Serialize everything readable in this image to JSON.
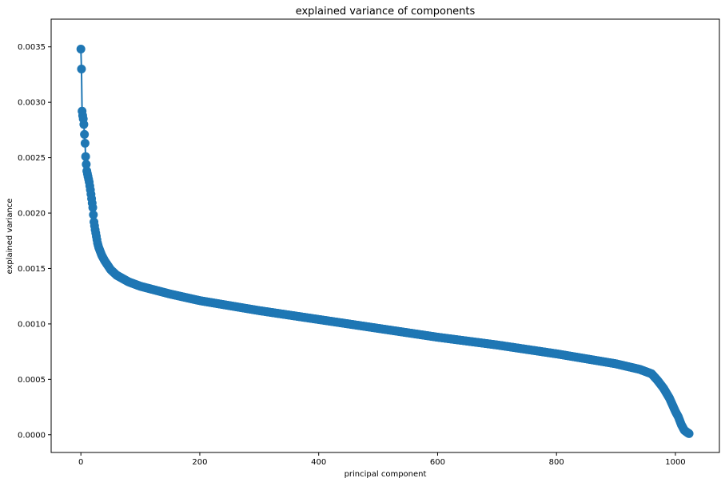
{
  "chart_data": {
    "type": "line",
    "title": "explained variance of components",
    "xlabel": "principal component",
    "ylabel": "explained variance",
    "xlim": [
      -50,
      1074
    ],
    "ylim": [
      -0.00016,
      0.00375
    ],
    "xticks": [
      0,
      200,
      400,
      600,
      800,
      1000
    ],
    "xtick_labels": [
      "0",
      "200",
      "400",
      "600",
      "800",
      "1000"
    ],
    "yticks": [
      0.0,
      0.0005,
      0.001,
      0.0015,
      0.002,
      0.0025,
      0.003,
      0.0035
    ],
    "ytick_labels": [
      "0.0000",
      "0.0005",
      "0.0010",
      "0.0015",
      "0.0020",
      "0.0025",
      "0.0030",
      "0.0035"
    ],
    "grid": false,
    "marker": "circle",
    "series_color": "#1f77b4",
    "n_points": 1024,
    "series": [
      {
        "x": [
          0,
          1,
          2,
          3,
          4,
          5,
          6,
          7,
          8,
          9,
          10,
          12,
          14,
          16,
          18,
          20,
          22,
          24,
          26,
          28,
          30,
          35,
          40,
          45,
          50,
          60,
          70,
          80,
          100,
          150,
          200,
          300,
          400,
          500,
          600,
          700,
          800,
          900,
          940,
          960,
          970,
          980,
          990,
          1000,
          1005,
          1010,
          1015,
          1020,
          1023
        ],
        "y": [
          0.00348,
          0.0033,
          0.00292,
          0.00288,
          0.00285,
          0.0028,
          0.00271,
          0.00263,
          0.00251,
          0.00244,
          0.00238,
          0.00233,
          0.00228,
          0.00221,
          0.00213,
          0.00205,
          0.00192,
          0.00185,
          0.00179,
          0.00173,
          0.00169,
          0.00162,
          0.00157,
          0.00153,
          0.00149,
          0.00144,
          0.00141,
          0.00138,
          0.00134,
          0.00127,
          0.00121,
          0.00112,
          0.00104,
          0.00096,
          0.00088,
          0.00081,
          0.00073,
          0.00064,
          0.00059,
          0.00055,
          0.00049,
          0.00042,
          0.00033,
          0.00021,
          0.00016,
          9e-05,
          4e-05,
          2e-05,
          1e-05
        ]
      }
    ]
  }
}
